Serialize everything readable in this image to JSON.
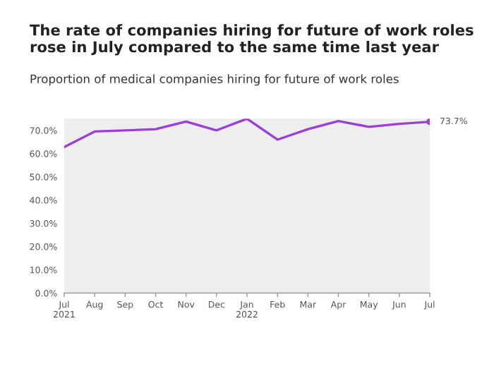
{
  "chart_data": {
    "type": "line",
    "title": "The rate of companies hiring for future of work roles rose in July compared to the same time last year",
    "subtitle": "Proportion of medical companies hiring for future of work roles",
    "categories": [
      "Jul\n2021",
      "Aug",
      "Sep",
      "Oct",
      "Nov",
      "Dec",
      "Jan\n2022",
      "Feb",
      "Mar",
      "Apr",
      "May",
      "Jun",
      "Jul"
    ],
    "series": [
      {
        "color": "#9b3fd6",
        "values": [
          62.8,
          69.5,
          70.0,
          70.5,
          73.8,
          70.0,
          75.0,
          66.0,
          70.5,
          74.0,
          71.5,
          72.8,
          73.7
        ],
        "value_labels": [
          null,
          null,
          null,
          null,
          null,
          null,
          null,
          null,
          null,
          null,
          null,
          null,
          "73.7%"
        ]
      }
    ],
    "ylim": [
      0,
      75
    ],
    "yticks": [
      {
        "value": 0,
        "label": "0.0%"
      },
      {
        "value": 10,
        "label": "10.0%"
      },
      {
        "value": 20,
        "label": "20.0%"
      },
      {
        "value": 30,
        "label": "30.0%"
      },
      {
        "value": 40,
        "label": "40.0%"
      },
      {
        "value": 50,
        "label": "50.0%"
      },
      {
        "value": 60,
        "label": "60.0%"
      },
      {
        "value": 70,
        "label": "70.0%"
      }
    ],
    "grid": false,
    "legend": false
  }
}
